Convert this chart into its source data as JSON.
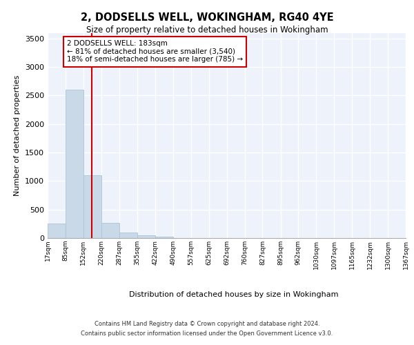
{
  "title_line1": "2, DODSELLS WELL, WOKINGHAM, RG40 4YE",
  "title_line2": "Size of property relative to detached houses in Wokingham",
  "xlabel": "Distribution of detached houses by size in Wokingham",
  "ylabel": "Number of detached properties",
  "bar_color": "#c9d9e8",
  "bar_edge_color": "#a8c4d8",
  "vline_color": "#cc0000",
  "vline_x": 183,
  "annotation_title": "2 DODSELLS WELL: 183sqm",
  "annotation_line1": "← 81% of detached houses are smaller (3,540)",
  "annotation_line2": "18% of semi-detached houses are larger (785) →",
  "background_color": "#eef2fa",
  "grid_color": "#ffffff",
  "footer_line1": "Contains HM Land Registry data © Crown copyright and database right 2024.",
  "footer_line2": "Contains public sector information licensed under the Open Government Licence v3.0.",
  "bin_edges": [
    17,
    85,
    152,
    220,
    287,
    355,
    422,
    490,
    557,
    625,
    692,
    760,
    827,
    895,
    962,
    1030,
    1097,
    1165,
    1232,
    1300,
    1367
  ],
  "bin_labels": [
    "17sqm",
    "85sqm",
    "152sqm",
    "220sqm",
    "287sqm",
    "355sqm",
    "422sqm",
    "490sqm",
    "557sqm",
    "625sqm",
    "692sqm",
    "760sqm",
    "827sqm",
    "895sqm",
    "962sqm",
    "1030sqm",
    "1097sqm",
    "1165sqm",
    "1232sqm",
    "1300sqm",
    "1367sqm"
  ],
  "bar_heights": [
    250,
    2600,
    1100,
    270,
    100,
    50,
    20,
    0,
    0,
    0,
    0,
    0,
    0,
    0,
    0,
    0,
    0,
    0,
    0,
    0
  ],
  "ylim": [
    0,
    3600
  ],
  "yticks": [
    0,
    500,
    1000,
    1500,
    2000,
    2500,
    3000,
    3500
  ]
}
